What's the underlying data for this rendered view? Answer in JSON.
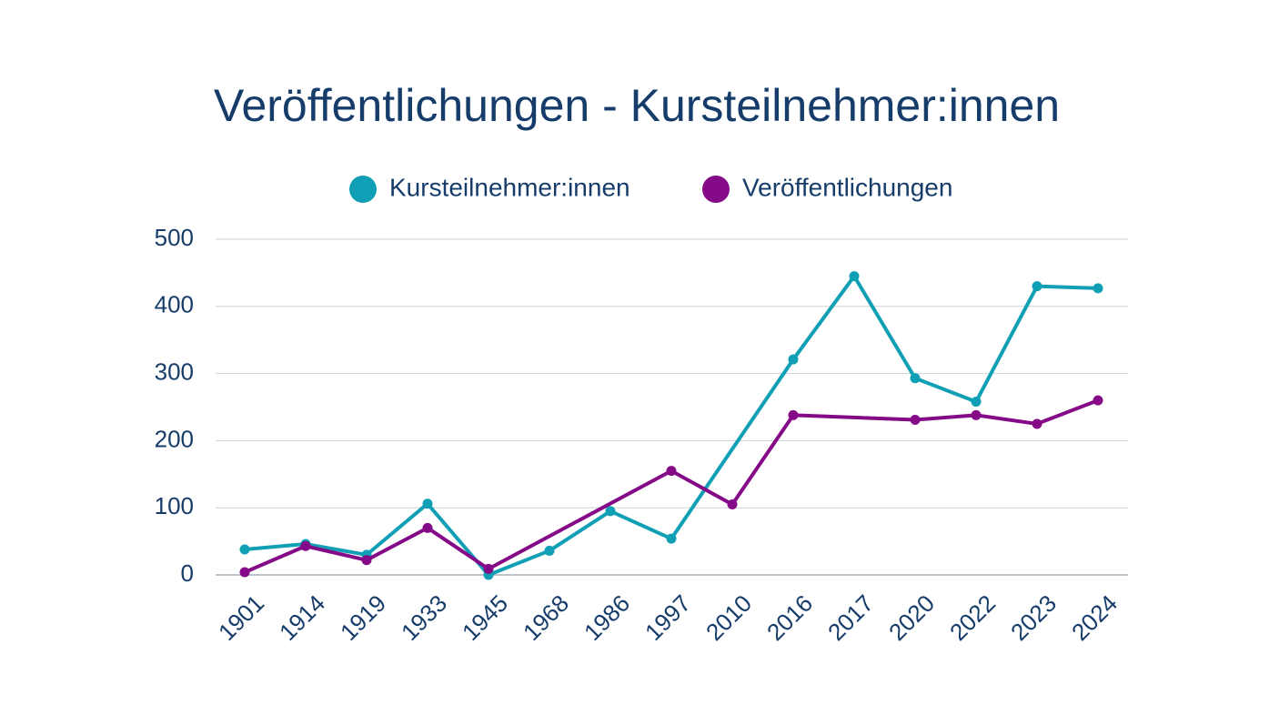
{
  "chart_data": {
    "type": "line",
    "title": "Veröffentlichungen - Kursteilnehmer:innen",
    "categories": [
      "1901",
      "1914",
      "1919",
      "1933",
      "1945",
      "1968",
      "1986",
      "1997",
      "2010",
      "2016",
      "2017",
      "2020",
      "2022",
      "2023",
      "2024"
    ],
    "series": [
      {
        "name": "Kursteilnehmer:innen",
        "color": "#109fb4",
        "values": [
          38,
          46,
          30,
          106,
          0,
          36,
          95,
          54,
          null,
          321,
          445,
          293,
          258,
          430,
          427
        ]
      },
      {
        "name": "Veröffentlichungen",
        "color": "#850a87",
        "values": [
          4,
          43,
          22,
          70,
          9,
          null,
          null,
          155,
          105,
          238,
          null,
          231,
          238,
          225,
          260
        ]
      }
    ],
    "ylim": [
      0,
      500
    ],
    "yticks": [
      0,
      100,
      200,
      300,
      400,
      500
    ],
    "grid": true,
    "span_gaps": true,
    "legend": "top"
  }
}
